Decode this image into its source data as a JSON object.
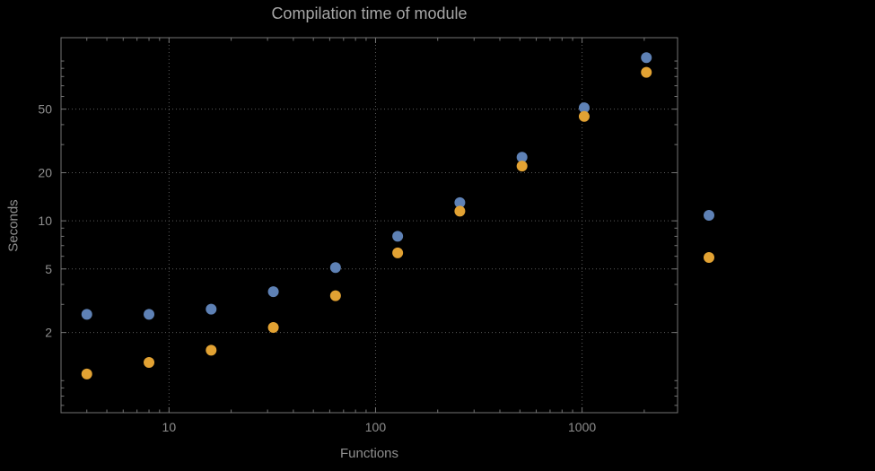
{
  "chart_data": {
    "type": "scatter",
    "title": "Compilation time of module",
    "xlabel": "Functions",
    "ylabel": "Seconds",
    "x_scale": "log",
    "y_scale": "log",
    "grid": true,
    "xlim": [
      3,
      2900
    ],
    "ylim": [
      0.63,
      140
    ],
    "x_ticks": [
      10,
      100,
      1000
    ],
    "y_ticks": [
      2,
      5,
      10,
      20,
      50
    ],
    "x": [
      4,
      8,
      16,
      32,
      64,
      128,
      256,
      512,
      1024,
      2048
    ],
    "series": [
      {
        "name": "blue",
        "color": "#5e81b5",
        "values": [
          2.6,
          2.6,
          2.8,
          3.6,
          5.1,
          8.0,
          13,
          25,
          51,
          105
        ]
      },
      {
        "name": "orange",
        "color": "#e2a233",
        "values": [
          1.1,
          1.3,
          1.55,
          2.15,
          3.4,
          6.3,
          11.5,
          22,
          45,
          85
        ]
      }
    ],
    "legend": {
      "position": "right-outside",
      "markers": [
        {
          "series": "blue",
          "color": "#5e81b5"
        },
        {
          "series": "orange",
          "color": "#e2a233"
        }
      ]
    }
  },
  "style_colors": {
    "background": "#000000",
    "frame": "#757575",
    "grid": "#5b5b5b",
    "tick_text": "#8f8f8f",
    "title_text": "#a6a6a6"
  }
}
